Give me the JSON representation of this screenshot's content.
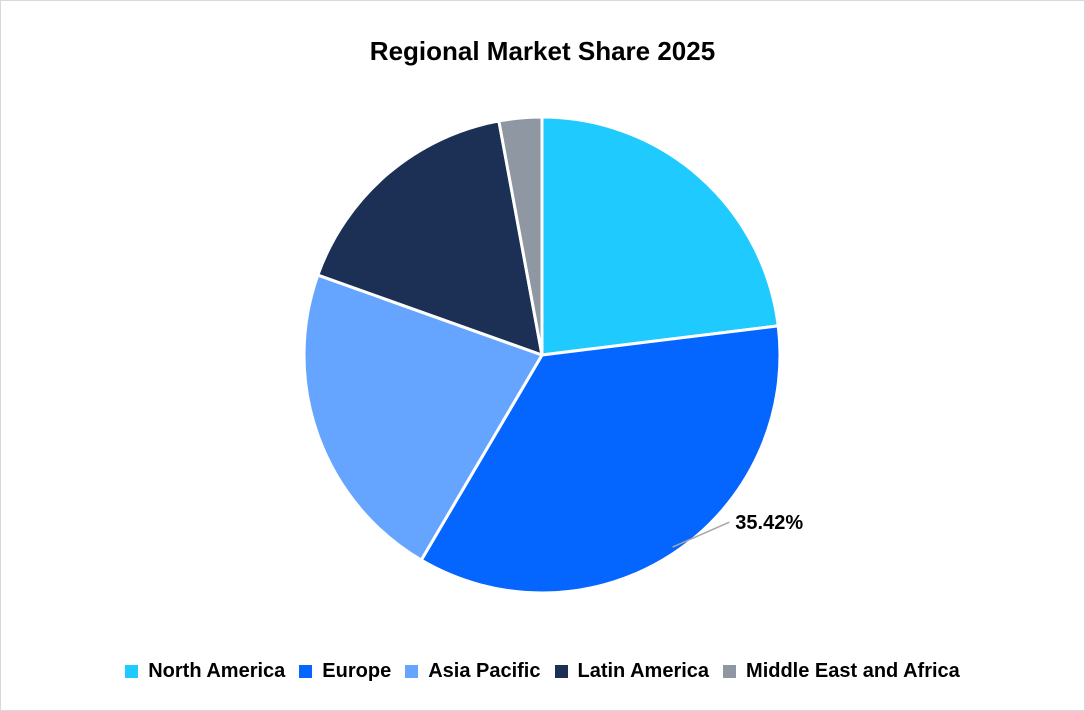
{
  "chart_data": {
    "type": "pie",
    "title": "Regional Market Share 2025",
    "slices": [
      {
        "name": "North America",
        "value": 23.05,
        "color": "#1fcaff"
      },
      {
        "name": "Europe",
        "value": 35.42,
        "color": "#0566ff"
      },
      {
        "name": "Asia Pacific",
        "value": 21.98,
        "color": "#66a5ff"
      },
      {
        "name": "Latin America",
        "value": 16.65,
        "color": "#1c2f54"
      },
      {
        "name": "Middle East and Africa",
        "value": 2.9,
        "color": "#8f97a3"
      }
    ],
    "data_labels": [
      {
        "slice": "Europe",
        "text": "35.42%"
      }
    ],
    "legend_position": "bottom"
  }
}
